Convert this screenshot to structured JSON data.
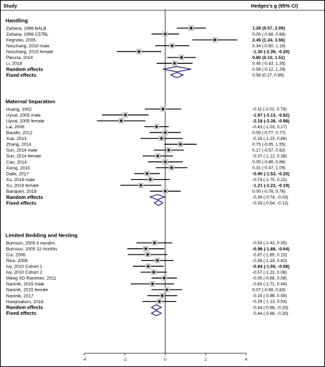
{
  "chart_data": {
    "type": "forest",
    "header": {
      "study": "Study",
      "effect": "Hedges's g (95% CI)"
    },
    "xlim": [
      -4,
      4
    ],
    "xticks": [
      -4,
      -2,
      0,
      2,
      4
    ],
    "reference_line": 0,
    "groups": [
      {
        "name": "Handling",
        "studies": [
          {
            "label": "Zahana, 1996 BALB",
            "g": 1.28,
            "lo": 0.57,
            "hi": 2.0,
            "ci_text": "1.28 (0.57, 2.00)"
          },
          {
            "label": "Zahana, 1996 C57BL",
            "g": 0.0,
            "lo": -0.68,
            "hi": 0.68,
            "ci_text": "0.00 (-0.68, 0.68)"
          },
          {
            "label": "Fegnolio, 2005",
            "g": 2.45,
            "lo": 1.34,
            "hi": 3.56,
            "ci_text": "2.45 (1.34, 3.56)"
          },
          {
            "label": "Noschang, 2010 male",
            "g": 0.34,
            "lo": -0.5,
            "hi": 1.19,
            "ci_text": "0.34 (-0.50, 1.19)"
          },
          {
            "label": "Noschang, 2010 female",
            "g": -1.3,
            "lo": -2.39,
            "hi": -0.2,
            "ci_text": "-1.30 (-2.39, -0.20)"
          },
          {
            "label": "Plescia, 2014",
            "g": 0.8,
            "lo": 0.1,
            "hi": 1.51,
            "ci_text": "0.80 (0.10, 1.51)"
          },
          {
            "label": "Li, 2018",
            "g": 0.46,
            "lo": -0.43,
            "hi": 1.35,
            "ci_text": "0.46 (-0.43, 1.35)"
          }
        ],
        "random": {
          "label": "Random effects",
          "g": 0.58,
          "lo": -0.12,
          "hi": 1.28,
          "ci_text": "0.58 (-0.12, 1.28)"
        },
        "fixed": {
          "label": "Fixed effects",
          "g": 0.58,
          "lo": 0.27,
          "hi": 0.89,
          "ci_text": "0.58 (0.27, 0.89)"
        }
      },
      {
        "name": "Maternal Separation",
        "studies": [
          {
            "label": "Huang, 2002",
            "g": -0.11,
            "lo": -1.01,
            "hi": 0.79,
            "ci_text": "-0.11 (-1.01, 0.79)"
          },
          {
            "label": "Uysal, 2005 male",
            "g": -1.97,
            "lo": -3.13,
            "hi": -0.82,
            "ci_text": "-1.97 (-3.13, -0.82)"
          },
          {
            "label": "Uysal, 2005 female",
            "g": -2.18,
            "lo": -3.38,
            "hi": -0.98,
            "ci_text": "-2.18 (-3.38, -0.98)"
          },
          {
            "label": "Lai, 2006",
            "g": -0.43,
            "lo": -1.03,
            "hi": 0.17,
            "ci_text": "-0.43 (-1.03, 0.17)"
          },
          {
            "label": "Baudin, 2012",
            "g": 0.0,
            "lo": -0.77,
            "hi": 0.77,
            "ci_text": "0.00 (-0.77, 0.77)"
          },
          {
            "label": "Xue, 2013",
            "g": -0.19,
            "lo": -1.23,
            "hi": 0.86,
            "ci_text": "-0.19 (-1.23, 0.86)"
          },
          {
            "label": "Zhang, 2014",
            "g": 0.75,
            "lo": -0.05,
            "hi": 1.55,
            "ci_text": "0.75 (-0.05, 1.55)"
          },
          {
            "label": "Sun, 2014 male",
            "g": 0.17,
            "lo": -0.57,
            "hi": 0.92,
            "ci_text": "0.17 (-0.57, 0.92)"
          },
          {
            "label": "Sun, 2014 female",
            "g": -0.37,
            "lo": -1.12,
            "hi": 0.38,
            "ci_text": "-0.37 (-1.12, 0.38)"
          },
          {
            "label": "Cao, 2014",
            "g": 0.0,
            "lo": -0.86,
            "hi": 0.86,
            "ci_text": "0.00 (-0.86, 0.86)"
          },
          {
            "label": "Xiong, 2015",
            "g": 0.31,
            "lo": -0.47,
            "hi": 1.09,
            "ci_text": "0.31 (-0.47, 1.09)"
          },
          {
            "label": "Dalle, 2017",
            "g": -0.9,
            "lo": -1.53,
            "hi": -0.26,
            "ci_text": "-0.90 (-1.53, -0.26)"
          },
          {
            "label": "Xu, 2018 male",
            "g": -0.74,
            "lo": -1.7,
            "hi": 0.22,
            "ci_text": "-0.74 (-1.70, 0.22)"
          },
          {
            "label": "Xu, 2018 female",
            "g": -1.21,
            "lo": -2.22,
            "hi": -0.19,
            "ci_text": "-1.21 (-2.22, -0.19)"
          },
          {
            "label": "Banqueri, 2018",
            "g": 0.0,
            "lo": -0.76,
            "hi": 0.76,
            "ci_text": "0.00 (-0.76, 0.76)"
          }
        ],
        "random": {
          "label": "Random effects",
          "g": -0.39,
          "lo": -0.74,
          "hi": -0.03,
          "ci_text": "-0.39 (-0.74, -0.03)"
        },
        "fixed": {
          "label": "Fixed effects",
          "g": -0.33,
          "lo": -0.54,
          "hi": -0.12,
          "ci_text": "-0.33 (-0.54, -0.12)"
        }
      },
      {
        "name": "Limited Bedding and Nesting",
        "studies": [
          {
            "label": "Burnson, 2005 4 months",
            "g": -0.53,
            "lo": -1.42,
            "hi": 0.35,
            "ci_text": "-0.53 (-1.42, 0.35)"
          },
          {
            "label": "Burnson, 2005 12 months",
            "g": -0.96,
            "lo": -1.88,
            "hi": -0.04,
            "ci_text": "-0.96 (-1.88, -0.04)"
          },
          {
            "label": "Cui, 2006",
            "g": -0.87,
            "lo": -1.85,
            "hi": 0.1,
            "ci_text": "-0.87 (-1.85, 0.10)"
          },
          {
            "label": "Rice, 2008",
            "g": -0.39,
            "lo": -1.19,
            "hi": 0.42,
            "ci_text": "-0.39 (-1.19, 0.42)"
          },
          {
            "label": "Ivy, 2010 Cohort 1",
            "g": -0.84,
            "lo": -1.6,
            "hi": -0.08,
            "ci_text": "-0.84 (-1.60, -0.08)"
          },
          {
            "label": "Ivy, 2010 Cohort 2",
            "g": -0.57,
            "lo": -1.22,
            "hi": 0.08,
            "ci_text": "-0.57 (-1.22, 0.08)"
          },
          {
            "label": "Wang XD Rammes, 2011",
            "g": -0.05,
            "lo": -0.68,
            "hi": 0.58,
            "ci_text": "-0.05 (-0.68, 0.58)"
          },
          {
            "label": "Naninik, 2015 male",
            "g": -0.63,
            "lo": -1.71,
            "hi": 0.44,
            "ci_text": "-0.63 (-1.71, 0.44)"
          },
          {
            "label": "Naninik, 2015 female",
            "g": 0.07,
            "lo": -0.68,
            "hi": 0.83,
            "ci_text": "0.07 (-0.68, 0.83)"
          },
          {
            "label": "Naninik, 2017",
            "g": -0.15,
            "lo": -0.88,
            "hi": 0.59,
            "ci_text": "-0.15 (-0.88, 0.59)"
          },
          {
            "label": "Hoeijmakers, 2018",
            "g": -0.29,
            "lo": -1.13,
            "hi": 0.54,
            "ci_text": "-0.29 (-1.13, 0.54)"
          }
        ],
        "random": {
          "label": "Random effects",
          "g": -0.44,
          "lo": -0.68,
          "hi": -0.2,
          "ci_text": "-0.44 (-0.68, -0.20)"
        },
        "fixed": {
          "label": "Fixed effects",
          "g": -0.44,
          "lo": -0.68,
          "hi": -0.2,
          "ci_text": "-0.44 (-0.68, -0.20)"
        }
      }
    ],
    "colors": {
      "marker_fill": "#c8c8c8",
      "line": "#000000",
      "diamond": "#2b2b8c"
    }
  }
}
